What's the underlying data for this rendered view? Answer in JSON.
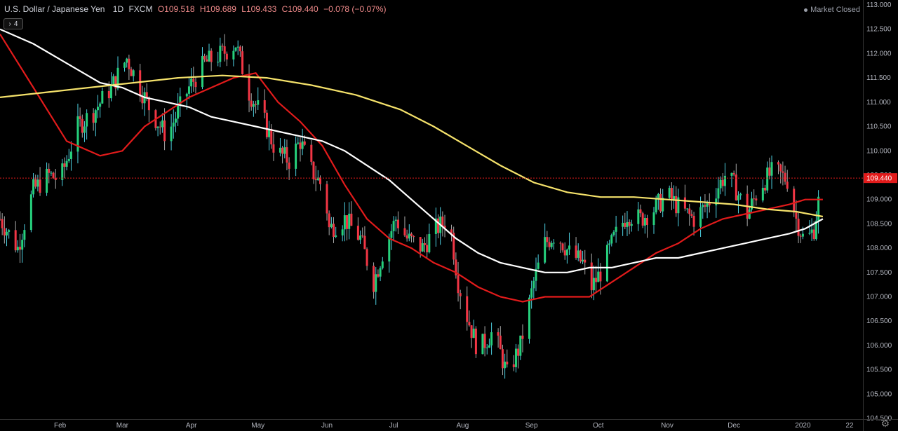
{
  "header": {
    "symbol": "U.S. Dollar / Japanese Yen",
    "interval": "1D",
    "source": "FXCM",
    "open": "O109.518",
    "high": "H109.689",
    "low": "L109.433",
    "close": "C109.440",
    "change": "−0.078 (−0.07%)",
    "indicators_count": "4"
  },
  "market_status": "Market Closed",
  "colors": {
    "up": "#26d07c",
    "down": "#f23645",
    "up_wick": "#4dd0e1",
    "ma_red": "#e21b1b",
    "ma_white": "#ffffff",
    "ma_yellow": "#f5e26b",
    "last_price_bg": "#e21b1b"
  },
  "chart_data": {
    "type": "line",
    "title": "",
    "xlabel": "",
    "ylabel": "",
    "ylim": [
      104.4,
      113.0
    ],
    "grid": false,
    "last_price": 109.44,
    "last_price_label": "109.440",
    "y_ticks": [
      "113.000",
      "112.500",
      "112.000",
      "111.500",
      "111.000",
      "110.500",
      "110.000",
      "109.500",
      "109.000",
      "108.500",
      "108.000",
      "107.500",
      "107.000",
      "106.500",
      "106.000",
      "105.500",
      "105.000",
      "104.500"
    ],
    "x_ticks": [
      {
        "label": "Feb",
        "d": 27
      },
      {
        "label": "Mar",
        "d": 55
      },
      {
        "label": "Apr",
        "d": 86
      },
      {
        "label": "May",
        "d": 116
      },
      {
        "label": "Jun",
        "d": 147
      },
      {
        "label": "Jul",
        "d": 177
      },
      {
        "label": "Aug",
        "d": 208
      },
      {
        "label": "Sep",
        "d": 239
      },
      {
        "label": "Oct",
        "d": 269
      },
      {
        "label": "Nov",
        "d": 300
      },
      {
        "label": "Dec",
        "d": 330
      },
      {
        "label": "2020",
        "d": 361
      },
      {
        "label": "22",
        "d": 382
      }
    ],
    "x_domain": [
      0,
      388
    ],
    "price_anchors": [
      [
        0,
        108.6
      ],
      [
        8,
        108.0
      ],
      [
        15,
        109.2
      ],
      [
        22,
        109.5
      ],
      [
        27,
        109.4
      ],
      [
        35,
        110.5
      ],
      [
        42,
        110.8
      ],
      [
        50,
        111.3
      ],
      [
        57,
        111.9
      ],
      [
        62,
        111.4
      ],
      [
        68,
        110.8
      ],
      [
        75,
        110.3
      ],
      [
        78,
        110.6
      ],
      [
        85,
        111.3
      ],
      [
        92,
        111.8
      ],
      [
        100,
        112.0
      ],
      [
        106,
        112.2
      ],
      [
        112,
        111.2
      ],
      [
        118,
        110.7
      ],
      [
        124,
        110.0
      ],
      [
        130,
        109.8
      ],
      [
        135,
        110.2
      ],
      [
        140,
        109.6
      ],
      [
        146,
        109.2
      ],
      [
        148,
        108.4
      ],
      [
        155,
        108.6
      ],
      [
        162,
        108.2
      ],
      [
        168,
        107.3
      ],
      [
        172,
        107.9
      ],
      [
        178,
        108.6
      ],
      [
        183,
        108.2
      ],
      [
        190,
        108.0
      ],
      [
        196,
        108.4
      ],
      [
        202,
        108.6
      ],
      [
        206,
        107.3
      ],
      [
        210,
        106.6
      ],
      [
        215,
        105.9
      ],
      [
        222,
        106.3
      ],
      [
        228,
        105.4
      ],
      [
        234,
        106.0
      ],
      [
        240,
        107.3
      ],
      [
        245,
        108.1
      ],
      [
        250,
        108.3
      ],
      [
        256,
        107.9
      ],
      [
        262,
        107.7
      ],
      [
        266,
        107.2
      ],
      [
        270,
        107.5
      ],
      [
        276,
        108.2
      ],
      [
        282,
        108.7
      ],
      [
        288,
        108.6
      ],
      [
        294,
        108.8
      ],
      [
        300,
        109.1
      ],
      [
        306,
        108.8
      ],
      [
        312,
        108.6
      ],
      [
        318,
        108.9
      ],
      [
        322,
        109.2
      ],
      [
        326,
        109.5
      ],
      [
        330,
        109.3
      ],
      [
        336,
        108.7
      ],
      [
        342,
        109.3
      ],
      [
        348,
        109.6
      ],
      [
        354,
        109.4
      ],
      [
        358,
        108.6
      ],
      [
        362,
        108.1
      ],
      [
        366,
        108.4
      ],
      [
        370,
        109.5
      ]
    ],
    "series": [
      {
        "name": "",
        "color": "#e21b1b",
        "points": [
          [
            0,
            112.4
          ],
          [
            15,
            111.3
          ],
          [
            30,
            110.2
          ],
          [
            45,
            109.9
          ],
          [
            55,
            110.0
          ],
          [
            65,
            110.5
          ],
          [
            75,
            110.8
          ],
          [
            85,
            111.1
          ],
          [
            95,
            111.3
          ],
          [
            105,
            111.5
          ],
          [
            115,
            111.6
          ],
          [
            125,
            111.0
          ],
          [
            135,
            110.6
          ],
          [
            145,
            110.1
          ],
          [
            155,
            109.3
          ],
          [
            165,
            108.6
          ],
          [
            175,
            108.2
          ],
          [
            185,
            108.0
          ],
          [
            195,
            107.7
          ],
          [
            205,
            107.5
          ],
          [
            215,
            107.2
          ],
          [
            225,
            107.0
          ],
          [
            235,
            106.9
          ],
          [
            245,
            107.0
          ],
          [
            255,
            107.0
          ],
          [
            265,
            107.0
          ],
          [
            275,
            107.3
          ],
          [
            285,
            107.6
          ],
          [
            295,
            107.9
          ],
          [
            305,
            108.1
          ],
          [
            315,
            108.4
          ],
          [
            325,
            108.6
          ],
          [
            335,
            108.7
          ],
          [
            345,
            108.8
          ],
          [
            355,
            108.9
          ],
          [
            362,
            109.0
          ],
          [
            370,
            109.0
          ]
        ]
      },
      {
        "name": "",
        "color": "#ffffff",
        "points": [
          [
            0,
            112.5
          ],
          [
            15,
            112.2
          ],
          [
            30,
            111.8
          ],
          [
            45,
            111.4
          ],
          [
            55,
            111.3
          ],
          [
            65,
            111.1
          ],
          [
            75,
            111.0
          ],
          [
            85,
            110.9
          ],
          [
            95,
            110.7
          ],
          [
            105,
            110.6
          ],
          [
            115,
            110.5
          ],
          [
            125,
            110.4
          ],
          [
            135,
            110.3
          ],
          [
            145,
            110.2
          ],
          [
            155,
            110.0
          ],
          [
            165,
            109.7
          ],
          [
            175,
            109.4
          ],
          [
            185,
            109.0
          ],
          [
            195,
            108.6
          ],
          [
            205,
            108.2
          ],
          [
            215,
            107.9
          ],
          [
            225,
            107.7
          ],
          [
            235,
            107.6
          ],
          [
            245,
            107.5
          ],
          [
            255,
            107.5
          ],
          [
            265,
            107.6
          ],
          [
            275,
            107.6
          ],
          [
            285,
            107.7
          ],
          [
            295,
            107.8
          ],
          [
            305,
            107.8
          ],
          [
            315,
            107.9
          ],
          [
            325,
            108.0
          ],
          [
            335,
            108.1
          ],
          [
            345,
            108.2
          ],
          [
            355,
            108.3
          ],
          [
            362,
            108.4
          ],
          [
            370,
            108.6
          ]
        ]
      },
      {
        "name": "",
        "color": "#f5e26b",
        "points": [
          [
            0,
            111.1
          ],
          [
            20,
            111.2
          ],
          [
            40,
            111.3
          ],
          [
            60,
            111.4
          ],
          [
            80,
            111.5
          ],
          [
            100,
            111.55
          ],
          [
            120,
            111.5
          ],
          [
            140,
            111.35
          ],
          [
            160,
            111.15
          ],
          [
            180,
            110.85
          ],
          [
            195,
            110.5
          ],
          [
            210,
            110.1
          ],
          [
            225,
            109.7
          ],
          [
            240,
            109.35
          ],
          [
            255,
            109.15
          ],
          [
            270,
            109.05
          ],
          [
            285,
            109.05
          ],
          [
            300,
            109.0
          ],
          [
            315,
            108.95
          ],
          [
            330,
            108.9
          ],
          [
            345,
            108.8
          ],
          [
            358,
            108.75
          ],
          [
            370,
            108.65
          ]
        ]
      }
    ]
  }
}
